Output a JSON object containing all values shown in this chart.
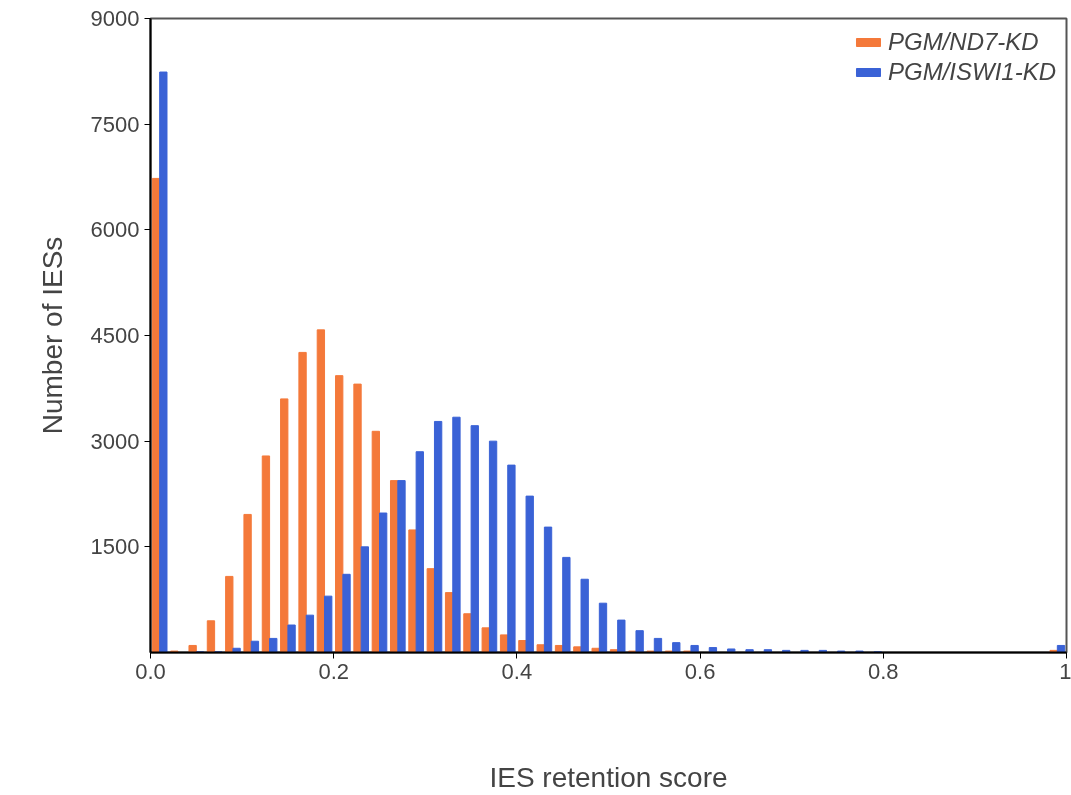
{
  "chart_data": {
    "type": "histogram",
    "xlabel": "IES retention score",
    "ylabel": "Number of IESs",
    "bins": [
      0,
      0.02,
      0.04,
      0.06,
      0.08,
      0.1,
      0.12,
      0.14,
      0.16,
      0.18,
      0.2,
      0.22,
      0.24,
      0.26,
      0.28,
      0.3,
      0.32,
      0.34,
      0.36,
      0.38,
      0.4,
      0.42,
      0.44,
      0.46,
      0.48,
      0.5,
      0.52,
      0.54,
      0.56,
      0.58,
      0.6,
      0.62,
      0.64,
      0.66,
      0.68,
      0.7,
      0.72,
      0.74,
      0.76,
      0.78,
      0.8,
      0.82,
      0.84,
      0.86,
      0.88,
      0.9,
      0.92,
      0.94,
      0.96,
      0.98,
      1.0
    ],
    "series": [
      {
        "name": "PGM/ND7-KD",
        "color": "#f4793a",
        "values": [
          6730,
          20,
          100,
          450,
          1080,
          1960,
          2790,
          3600,
          4260,
          4580,
          3930,
          3810,
          3140,
          2440,
          1740,
          1190,
          850,
          550,
          350,
          250,
          170,
          110,
          100,
          80,
          60,
          40,
          20,
          20,
          20,
          20,
          0,
          0,
          0,
          0,
          0,
          0,
          0,
          0,
          0,
          0,
          0,
          0,
          0,
          0,
          0,
          0,
          0,
          0,
          0,
          30
        ]
      },
      {
        "name": "PGM/ISWI1-KD",
        "color": "#3a62d6",
        "values": [
          8240,
          0,
          10,
          10,
          60,
          160,
          200,
          390,
          530,
          800,
          1110,
          1500,
          1980,
          2440,
          2850,
          3280,
          3340,
          3220,
          3000,
          2660,
          2220,
          1780,
          1350,
          1040,
          700,
          460,
          310,
          200,
          140,
          100,
          70,
          50,
          40,
          40,
          30,
          30,
          30,
          20,
          20,
          10,
          0,
          0,
          0,
          0,
          0,
          0,
          0,
          0,
          0,
          100
        ]
      }
    ],
    "xlim": [
      0,
      1.0
    ],
    "ylim": [
      0,
      9000
    ],
    "xticks": [
      {
        "value": 0,
        "label": "0.0"
      },
      0.2,
      0.4,
      0.6,
      0.8,
      {
        "value": 1,
        "label": "1"
      }
    ],
    "yticks": [
      1500,
      3000,
      4500,
      6000,
      7500,
      9000
    ],
    "legend": "top right"
  }
}
